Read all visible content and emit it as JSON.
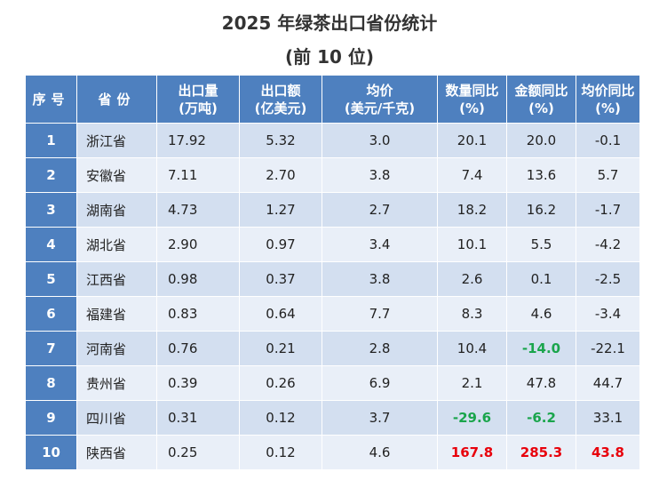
{
  "title": {
    "line1": "2025 年绿茶出口省份统计",
    "line2": "(前 10 位)"
  },
  "headers": {
    "seq": "序号",
    "province": "省份",
    "qty": [
      "出口量",
      "(万吨)"
    ],
    "amount": [
      "出口额",
      "(亿美元)"
    ],
    "price": [
      "均价",
      "(美元/千克)"
    ],
    "qty_yoy": [
      "数量同比",
      "(%)"
    ],
    "amount_yoy": [
      "金额同比",
      "(%)"
    ],
    "price_yoy": [
      "均价同比",
      "(%)"
    ]
  },
  "colors": {
    "header_bg": "#4e80bf",
    "row_odd": "#d3dff0",
    "row_even": "#e9eff8",
    "highlight_red": "#e8000b",
    "highlight_green": "#1aa54c"
  },
  "rows": [
    {
      "seq": "1",
      "province": "浙江省",
      "qty": "17.92",
      "amount": "5.32",
      "price": "3.0",
      "qty_yoy": "20.1",
      "amount_yoy": "20.0",
      "price_yoy": "-0.1"
    },
    {
      "seq": "2",
      "province": "安徽省",
      "qty": "7.11",
      "amount": "2.70",
      "price": "3.8",
      "qty_yoy": "7.4",
      "amount_yoy": "13.6",
      "price_yoy": "5.7"
    },
    {
      "seq": "3",
      "province": "湖南省",
      "qty": "4.73",
      "amount": "1.27",
      "price": "2.7",
      "qty_yoy": "18.2",
      "amount_yoy": "16.2",
      "price_yoy": "-1.7"
    },
    {
      "seq": "4",
      "province": "湖北省",
      "qty": "2.90",
      "amount": "0.97",
      "price": "3.4",
      "qty_yoy": "10.1",
      "amount_yoy": "5.5",
      "price_yoy": "-4.2"
    },
    {
      "seq": "5",
      "province": "江西省",
      "qty": "0.98",
      "amount": "0.37",
      "price": "3.8",
      "qty_yoy": "2.6",
      "amount_yoy": "0.1",
      "price_yoy": "-2.5"
    },
    {
      "seq": "6",
      "province": "福建省",
      "qty": "0.83",
      "amount": "0.64",
      "price": "7.7",
      "qty_yoy": "8.3",
      "amount_yoy": "4.6",
      "price_yoy": "-3.4"
    },
    {
      "seq": "7",
      "province": "河南省",
      "qty": "0.76",
      "amount": "0.21",
      "price": "2.8",
      "qty_yoy": "10.4",
      "amount_yoy": "-14.0",
      "price_yoy": "-22.1",
      "hl": {
        "amount_yoy": "neg"
      }
    },
    {
      "seq": "8",
      "province": "贵州省",
      "qty": "0.39",
      "amount": "0.26",
      "price": "6.9",
      "qty_yoy": "2.1",
      "amount_yoy": "47.8",
      "price_yoy": "44.7"
    },
    {
      "seq": "9",
      "province": "四川省",
      "qty": "0.31",
      "amount": "0.12",
      "price": "3.7",
      "qty_yoy": "-29.6",
      "amount_yoy": "-6.2",
      "price_yoy": "33.1",
      "hl": {
        "qty_yoy": "neg",
        "amount_yoy": "neg"
      }
    },
    {
      "seq": "10",
      "province": "陕西省",
      "qty": "0.25",
      "amount": "0.12",
      "price": "4.6",
      "qty_yoy": "167.8",
      "amount_yoy": "285.3",
      "price_yoy": "43.8",
      "hl": {
        "qty_yoy": "pos",
        "amount_yoy": "pos",
        "price_yoy": "pos"
      }
    }
  ]
}
